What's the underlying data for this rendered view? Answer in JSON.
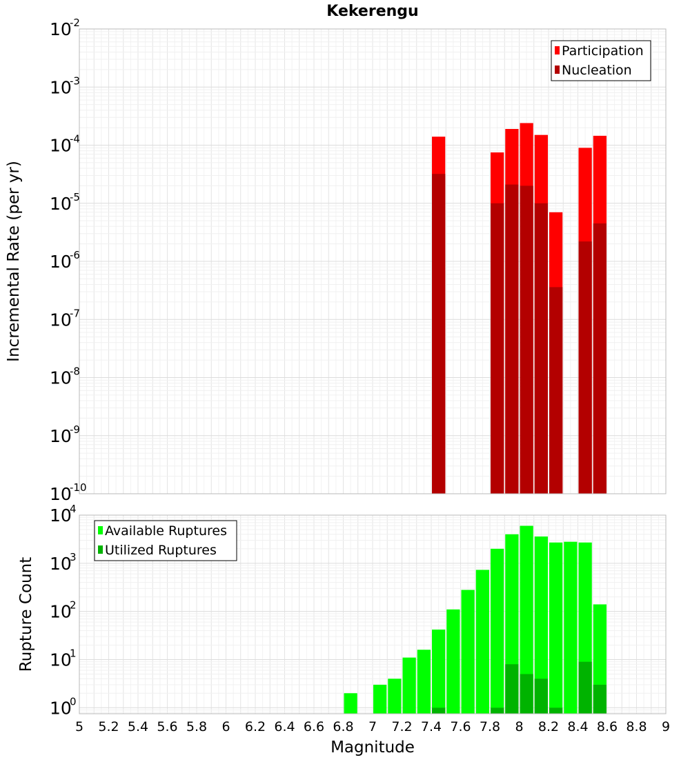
{
  "chart_data": [
    {
      "type": "bar",
      "title": "Kekerengu",
      "xlabel": "",
      "ylabel": "Incremental Rate (per yr)",
      "yscale": "log",
      "ylim": [
        1e-10,
        0.01
      ],
      "xlim": [
        5,
        9
      ],
      "bin_width": 0.1,
      "grid": true,
      "legend_position": "top-right",
      "y_tick_exponents": [
        "-10",
        "-9",
        "-8",
        "-7",
        "-6",
        "-5",
        "-4",
        "-3",
        "-2"
      ],
      "series": [
        {
          "name": "Participation",
          "color": "#ff0000",
          "points": [
            {
              "x": 7.45,
              "y": 0.00014
            },
            {
              "x": 7.85,
              "y": 7.5e-05
            },
            {
              "x": 7.95,
              "y": 0.00019
            },
            {
              "x": 8.05,
              "y": 0.00024
            },
            {
              "x": 8.15,
              "y": 0.00015
            },
            {
              "x": 8.25,
              "y": 7e-06
            },
            {
              "x": 8.45,
              "y": 9e-05
            },
            {
              "x": 8.55,
              "y": 0.000145
            }
          ]
        },
        {
          "name": "Nucleation",
          "color": "#b30000",
          "points": [
            {
              "x": 7.45,
              "y": 3.2e-05
            },
            {
              "x": 7.85,
              "y": 1e-05
            },
            {
              "x": 7.95,
              "y": 2.1e-05
            },
            {
              "x": 8.05,
              "y": 2e-05
            },
            {
              "x": 8.15,
              "y": 1e-05
            },
            {
              "x": 8.25,
              "y": 3.6e-07
            },
            {
              "x": 8.45,
              "y": 2.2e-06
            },
            {
              "x": 8.55,
              "y": 4.5e-06
            }
          ]
        }
      ]
    },
    {
      "type": "bar",
      "title": "",
      "xlabel": "Magnitude",
      "ylabel": "Rupture Count",
      "yscale": "log",
      "ylim": [
        0.75,
        10000
      ],
      "xlim": [
        5,
        9
      ],
      "bin_width": 0.1,
      "grid": true,
      "legend_position": "top-left",
      "y_tick_exponents": [
        "0",
        "1",
        "2",
        "3",
        "4"
      ],
      "x_tick_labels": [
        "5",
        "5.2",
        "5.4",
        "5.6",
        "5.8",
        "6",
        "6.2",
        "6.4",
        "6.6",
        "6.8",
        "7",
        "7.2",
        "7.4",
        "7.6",
        "7.8",
        "8",
        "8.2",
        "8.4",
        "8.6",
        "8.8",
        "9"
      ],
      "series": [
        {
          "name": "Available Ruptures",
          "color": "#00ff00",
          "points": [
            {
              "x": 6.85,
              "y": 2
            },
            {
              "x": 7.05,
              "y": 3
            },
            {
              "x": 7.15,
              "y": 4
            },
            {
              "x": 7.25,
              "y": 11
            },
            {
              "x": 7.35,
              "y": 16
            },
            {
              "x": 7.45,
              "y": 42
            },
            {
              "x": 7.55,
              "y": 110
            },
            {
              "x": 7.65,
              "y": 280
            },
            {
              "x": 7.75,
              "y": 730
            },
            {
              "x": 7.85,
              "y": 2000
            },
            {
              "x": 7.95,
              "y": 4000
            },
            {
              "x": 8.05,
              "y": 6000
            },
            {
              "x": 8.15,
              "y": 3600
            },
            {
              "x": 8.25,
              "y": 2700
            },
            {
              "x": 8.35,
              "y": 2800
            },
            {
              "x": 8.45,
              "y": 2700
            },
            {
              "x": 8.55,
              "y": 140
            }
          ]
        },
        {
          "name": "Utilized Ruptures",
          "color": "#00b300",
          "points": [
            {
              "x": 7.45,
              "y": 1
            },
            {
              "x": 7.85,
              "y": 1
            },
            {
              "x": 7.95,
              "y": 8
            },
            {
              "x": 8.05,
              "y": 5
            },
            {
              "x": 8.15,
              "y": 4
            },
            {
              "x": 8.25,
              "y": 1
            },
            {
              "x": 8.45,
              "y": 9
            },
            {
              "x": 8.55,
              "y": 3
            }
          ]
        }
      ]
    }
  ]
}
